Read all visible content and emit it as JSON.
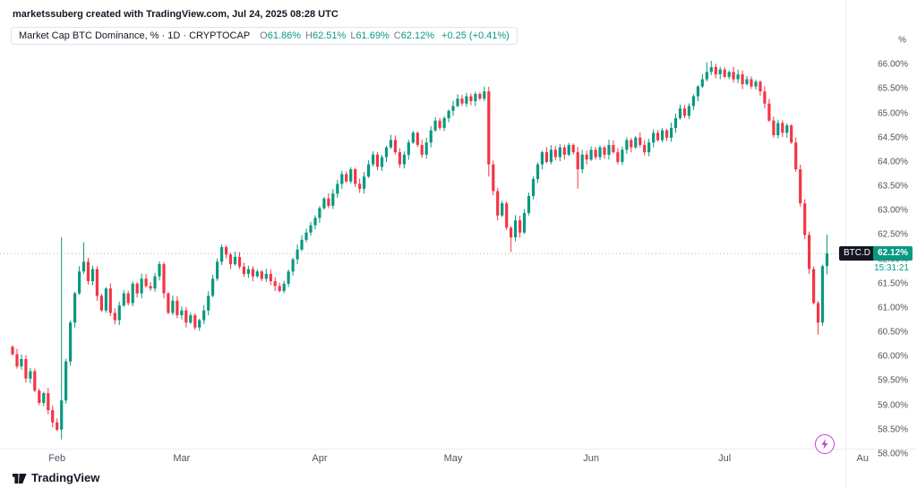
{
  "meta": {
    "attribution": "marketssuberg created with TradingView.com, Jul 24, 2025 08:28 UTC"
  },
  "legend": {
    "title": "Market Cap BTC Dominance, % · 1D · CRYPTOCAP",
    "ohlc": [
      {
        "label": "O",
        "value": "61.86%"
      },
      {
        "label": "H",
        "value": "62.51%"
      },
      {
        "label": "L",
        "value": "61.69%"
      },
      {
        "label": "C",
        "value": "62.12%"
      }
    ],
    "change": "+0.25 (+0.41%)"
  },
  "price_scale": {
    "unit": "%",
    "ticks": [
      "66.00%",
      "65.50%",
      "65.00%",
      "64.50%",
      "64.00%",
      "63.50%",
      "63.00%",
      "62.50%",
      "62.00%",
      "61.50%",
      "61.00%",
      "60.50%",
      "60.00%",
      "59.50%",
      "59.00%",
      "58.50%",
      "58.00%"
    ],
    "badge": {
      "symbol": "BTC.D",
      "price": "62.12%",
      "countdown": "15:31:21"
    }
  },
  "time_scale": {
    "ticks": [
      {
        "label": "Feb",
        "index": 10
      },
      {
        "label": "Mar",
        "index": 38
      },
      {
        "label": "Apr",
        "index": 69
      },
      {
        "label": "May",
        "index": 99
      },
      {
        "label": "Jun",
        "index": 130
      },
      {
        "label": "Jul",
        "index": 160
      },
      {
        "label": "Au",
        "index": 191
      }
    ]
  },
  "footer": {
    "brand": "TradingView"
  },
  "colors": {
    "up": "#089981",
    "down": "#f23645",
    "price_line": "#b2b5be",
    "axis_text": "#50535e",
    "accent_purple": "#c73be0"
  },
  "chart_data": {
    "type": "candlestick",
    "title": "Market Cap BTC Dominance",
    "symbol": "BTC.D",
    "exchange": "CRYPTOCAP",
    "interval": "1D",
    "unit": "%",
    "ylim": [
      58.0,
      66.5
    ],
    "current_price": 62.12,
    "last_candle": {
      "o": 61.86,
      "h": 62.51,
      "l": 61.69,
      "c": 62.12,
      "change": "+0.25 (+0.41%)"
    },
    "open_first": 60.2,
    "closes": [
      60.05,
      59.8,
      59.95,
      59.55,
      59.7,
      59.3,
      59.05,
      59.25,
      58.9,
      58.65,
      58.5,
      59.1,
      59.9,
      60.7,
      61.3,
      61.75,
      61.95,
      61.55,
      61.8,
      61.25,
      60.95,
      61.4,
      60.9,
      60.75,
      61.05,
      61.3,
      61.1,
      61.5,
      61.3,
      61.6,
      61.45,
      61.4,
      61.65,
      61.9,
      61.3,
      60.9,
      61.15,
      60.85,
      60.95,
      60.7,
      60.85,
      60.6,
      60.75,
      60.95,
      61.25,
      61.6,
      61.95,
      62.25,
      62.1,
      61.9,
      62.05,
      61.85,
      61.7,
      61.8,
      61.65,
      61.75,
      61.6,
      61.7,
      61.55,
      61.45,
      61.35,
      61.5,
      61.75,
      62.0,
      62.2,
      62.4,
      62.55,
      62.7,
      62.85,
      63.05,
      63.25,
      63.1,
      63.35,
      63.55,
      63.75,
      63.6,
      63.85,
      63.55,
      63.45,
      63.7,
      63.95,
      64.15,
      63.9,
      64.1,
      64.3,
      64.45,
      64.2,
      63.95,
      64.15,
      64.4,
      64.6,
      64.35,
      64.15,
      64.4,
      64.65,
      64.85,
      64.7,
      64.9,
      65.05,
      65.15,
      65.3,
      65.2,
      65.35,
      65.25,
      65.4,
      65.3,
      65.45,
      63.95,
      63.4,
      62.9,
      63.15,
      62.65,
      62.45,
      62.8,
      62.55,
      62.95,
      63.3,
      63.65,
      63.95,
      64.2,
      64.0,
      64.25,
      64.1,
      64.3,
      64.15,
      64.35,
      64.2,
      63.85,
      64.15,
      64.05,
      64.25,
      64.1,
      64.3,
      64.15,
      64.35,
      64.2,
      64.0,
      64.25,
      64.45,
      64.3,
      64.5,
      64.35,
      64.2,
      64.4,
      64.6,
      64.45,
      64.65,
      64.5,
      64.7,
      64.9,
      65.1,
      64.95,
      65.15,
      65.35,
      65.55,
      65.7,
      65.85,
      65.95,
      65.8,
      65.9,
      65.75,
      65.85,
      65.7,
      65.8,
      65.6,
      65.7,
      65.55,
      65.65,
      65.45,
      65.2,
      64.85,
      64.55,
      64.8,
      64.6,
      64.75,
      64.4,
      63.85,
      63.15,
      62.5,
      61.8,
      61.1,
      60.7,
      61.86,
      62.12
    ],
    "overrides": {
      "11": {
        "h": 62.45,
        "l": 58.3
      },
      "16": {
        "h": 62.35
      },
      "106": {
        "h": 65.55
      },
      "107": {
        "l": 63.7
      },
      "112": {
        "l": 62.15
      },
      "127": {
        "l": 63.45
      },
      "156": {
        "h": 66.05
      },
      "157": {
        "h": 66.08
      },
      "181": {
        "l": 60.45
      },
      "183": {
        "o": 61.86,
        "h": 62.51,
        "l": 61.69
      }
    }
  }
}
